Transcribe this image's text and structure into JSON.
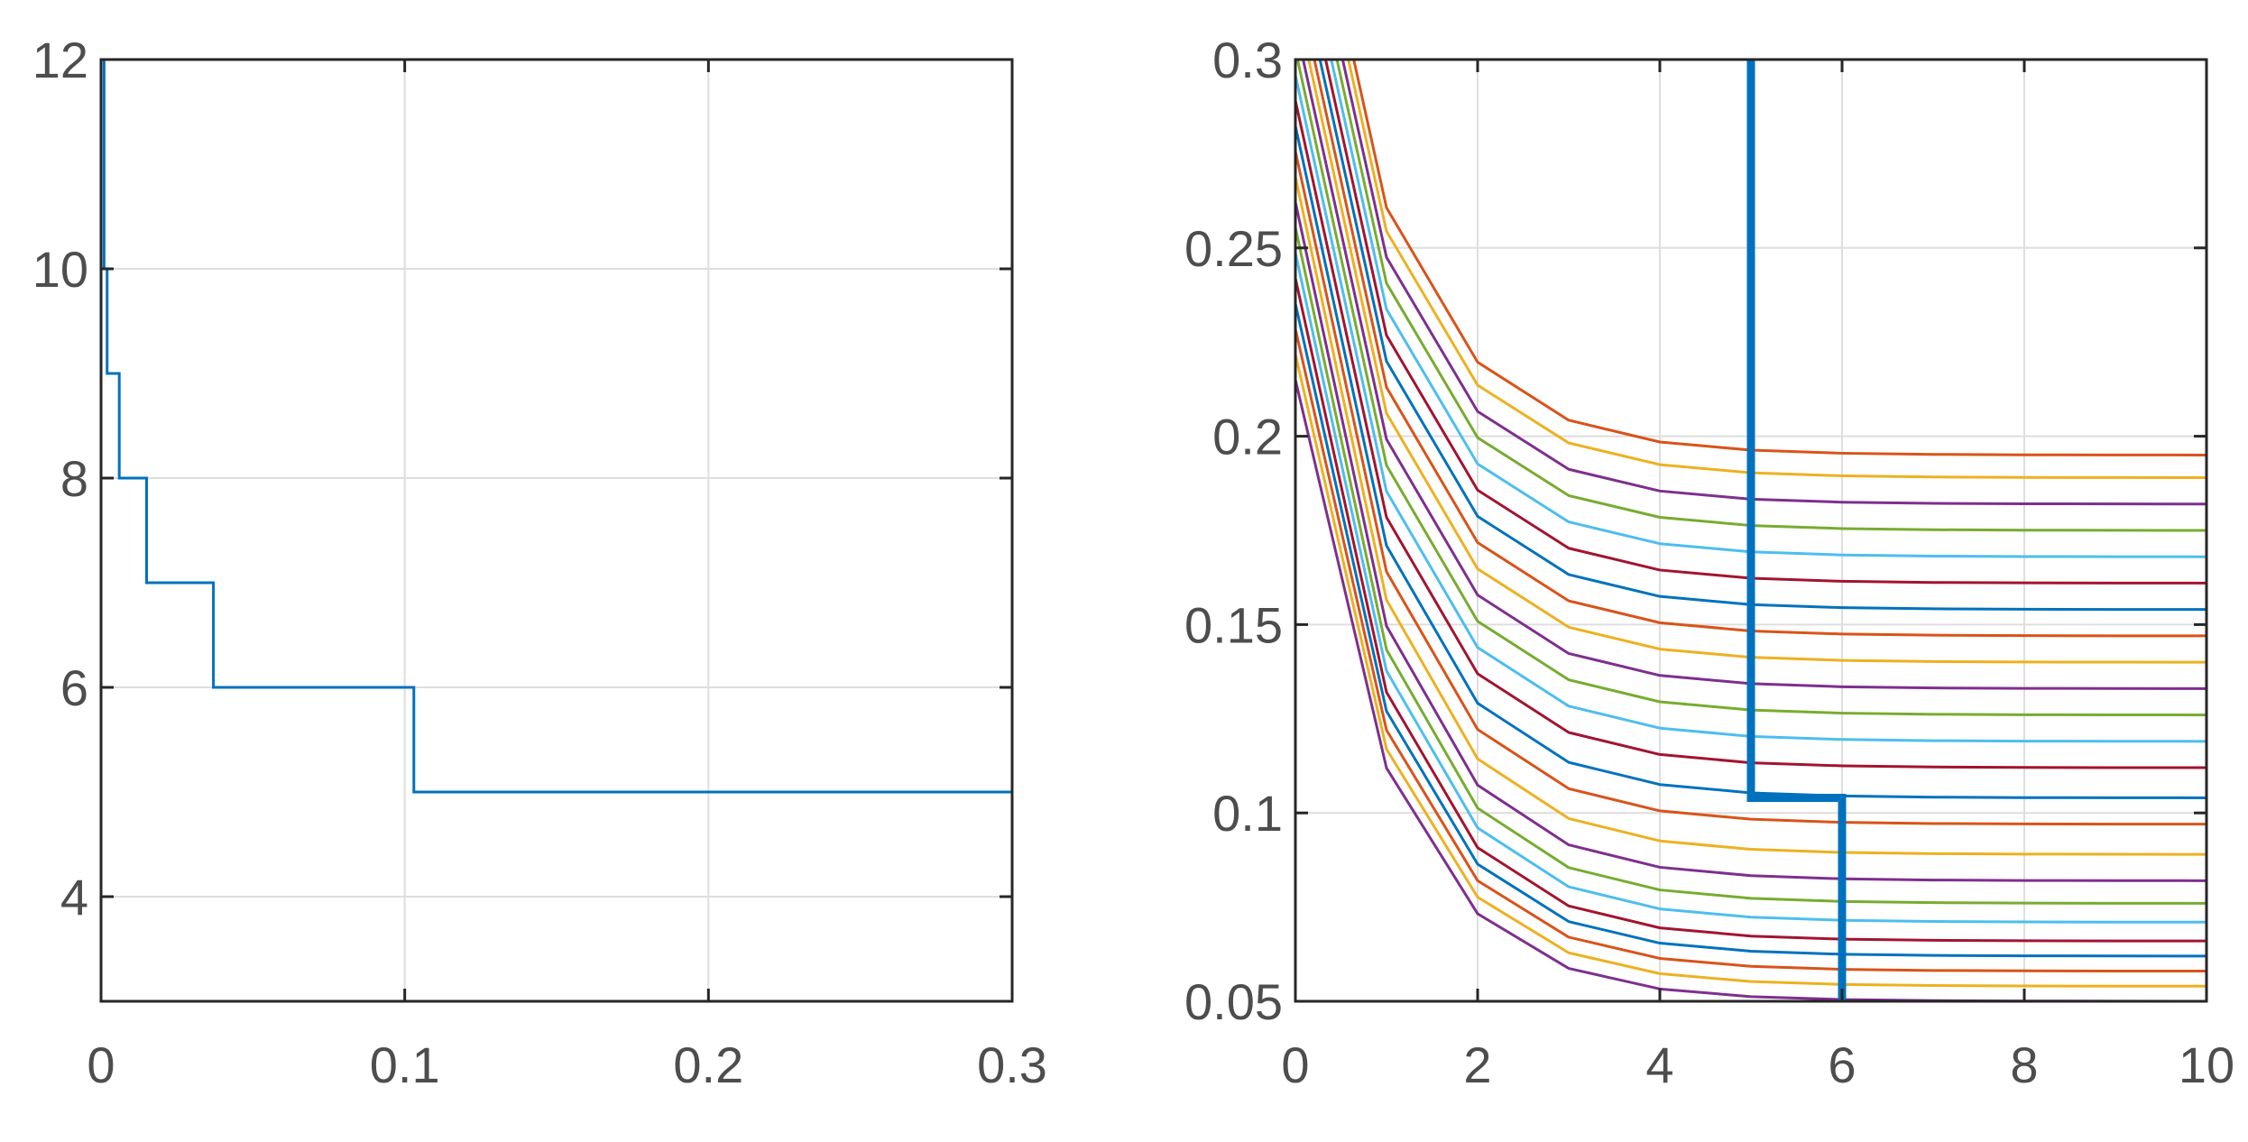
{
  "chart_data": [
    {
      "type": "line",
      "title": "",
      "xlabel": "",
      "ylabel": "",
      "xlim": [
        0,
        0.3
      ],
      "ylim": [
        3,
        12
      ],
      "xticks": [
        0,
        0.1,
        0.2,
        0.3
      ],
      "yticks": [
        4,
        6,
        8,
        10,
        12
      ],
      "xtick_labels": [
        "0",
        "0.1",
        "0.2",
        "0.3"
      ],
      "ytick_labels": [
        "4",
        "6",
        "8",
        "10",
        "12"
      ],
      "grid": true,
      "legend": "none",
      "series": [
        {
          "color": "#0072BD",
          "step": true,
          "points": [
            [
              0,
              12
            ],
            [
              0.001,
              10
            ],
            [
              0.002,
              9
            ],
            [
              0.006,
              8
            ],
            [
              0.015,
              7
            ],
            [
              0.037,
              6
            ],
            [
              0.103,
              5
            ],
            [
              0.3,
              4
            ]
          ]
        }
      ]
    },
    {
      "type": "line",
      "title": "",
      "xlabel": "",
      "ylabel": "",
      "xlim": [
        0,
        10
      ],
      "ylim": [
        0.05,
        0.3
      ],
      "xticks": [
        0,
        2,
        4,
        6,
        8,
        10
      ],
      "yticks": [
        0.05,
        0.1,
        0.15,
        0.2,
        0.25,
        0.3
      ],
      "xtick_labels": [
        "0",
        "2",
        "4",
        "6",
        "8",
        "10"
      ],
      "ytick_labels": [
        "0.05",
        "0.1",
        "0.15",
        "0.2",
        "0.25",
        "0.3"
      ],
      "grid": true,
      "legend": "none",
      "x": [
        0,
        1,
        2,
        3,
        4,
        5,
        6,
        7,
        8,
        9,
        10
      ],
      "palette": [
        "#D95319",
        "#EDB120",
        "#7E2F8E",
        "#77AC30",
        "#4DBEEE",
        "#A2142F",
        "#0072BD"
      ],
      "curve_model": {
        "asymptotes": [
          0.195,
          0.189,
          0.182,
          0.175,
          0.168,
          0.161,
          0.154,
          0.147,
          0.14,
          0.133,
          0.126,
          0.119,
          0.112,
          0.104,
          0.097,
          0.089,
          0.082,
          0.076,
          0.071,
          0.066,
          0.062,
          0.058,
          0.054,
          0.05
        ],
        "start_top": 0.37,
        "start_bottom": 0.215,
        "decay": 0.98
      },
      "highlight": {
        "color": "#0072BD",
        "points": [
          [
            5,
            0.3
          ],
          [
            5,
            0.104
          ],
          [
            6,
            0.104
          ],
          [
            6,
            0.05
          ]
        ]
      }
    }
  ]
}
